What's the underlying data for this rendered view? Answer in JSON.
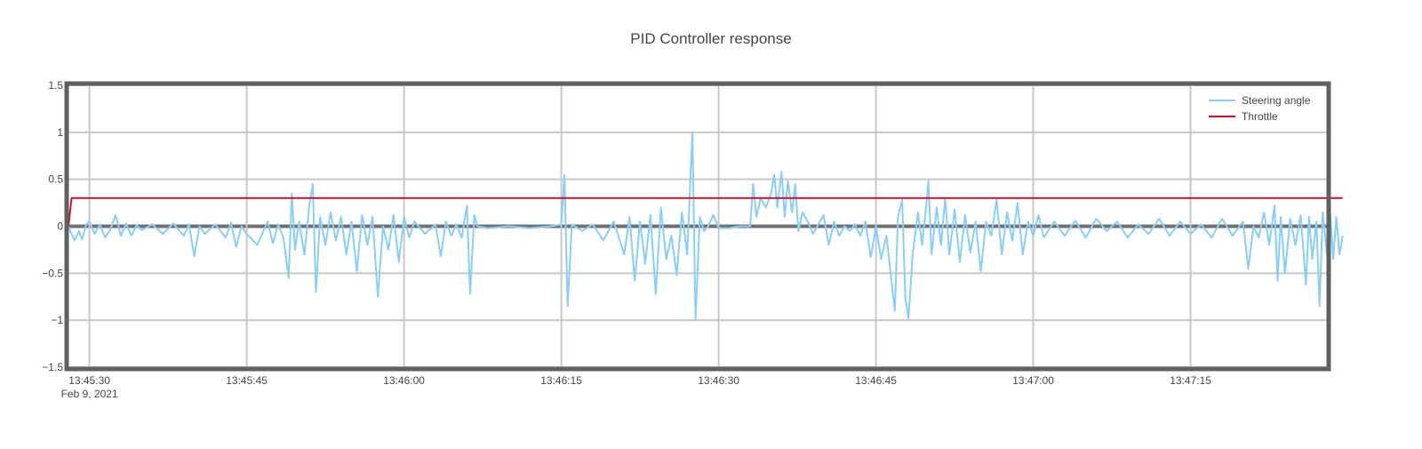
{
  "chart_data": {
    "type": "line",
    "title": "PID Controller response",
    "xlabel": "",
    "ylabel": "",
    "x_range": [
      "2021-02-09 13:45:28",
      "2021-02-09 13:47:28"
    ],
    "ylim": [
      -1.5,
      1.5
    ],
    "y_ticks": [
      -1.5,
      -1,
      -0.5,
      0,
      0.5,
      1,
      1.5
    ],
    "y_tick_labels": [
      "−1.5",
      "−1",
      "−0.5",
      "0",
      "0.5",
      "1",
      "1.5"
    ],
    "x_ticks": [
      "2021-02-09 13:45:30",
      "2021-02-09 13:45:45",
      "2021-02-09 13:46:00",
      "2021-02-09 13:46:15",
      "2021-02-09 13:46:30",
      "2021-02-09 13:46:45",
      "2021-02-09 13:47:00",
      "2021-02-09 13:47:15"
    ],
    "x_tick_labels": [
      "13:45:30",
      "13:45:45",
      "13:46:00",
      "13:46:15",
      "13:46:30",
      "13:46:45",
      "13:47:00",
      "13:47:15"
    ],
    "x_date_label": "Feb 9, 2021",
    "grid": true,
    "legend_position": "top-right",
    "series": [
      {
        "name": "Steering angle",
        "color": "#87CEFA",
        "points": [
          [
            "13:45:28.0",
            0.0
          ],
          [
            "13:45:28.3",
            -0.08
          ],
          [
            "13:45:28.6",
            -0.15
          ],
          [
            "13:45:29.0",
            -0.05
          ],
          [
            "13:45:29.3",
            -0.14
          ],
          [
            "13:45:29.7",
            0.02
          ],
          [
            "13:45:30.0",
            0.05
          ],
          [
            "13:45:30.5",
            -0.08
          ],
          [
            "13:45:31.0",
            0.02
          ],
          [
            "13:45:31.5",
            -0.12
          ],
          [
            "13:45:32.0",
            -0.03
          ],
          [
            "13:45:32.5",
            0.12
          ],
          [
            "13:45:33.0",
            -0.1
          ],
          [
            "13:45:33.5",
            0.03
          ],
          [
            "13:45:34.0",
            -0.1
          ],
          [
            "13:45:34.5",
            0.01
          ],
          [
            "13:45:35.0",
            -0.04
          ],
          [
            "13:45:36.0",
            0.02
          ],
          [
            "13:45:37.0",
            -0.08
          ],
          [
            "13:45:38.0",
            0.03
          ],
          [
            "13:45:39.0",
            -0.1
          ],
          [
            "13:45:39.5",
            0.02
          ],
          [
            "13:45:40.0",
            -0.32
          ],
          [
            "13:45:40.5",
            0.0
          ],
          [
            "13:45:41.0",
            -0.08
          ],
          [
            "13:45:42.0",
            0.02
          ],
          [
            "13:45:43.0",
            -0.12
          ],
          [
            "13:45:43.5",
            0.04
          ],
          [
            "13:45:44.0",
            -0.22
          ],
          [
            "13:45:44.5",
            0.0
          ],
          [
            "13:45:45.0",
            -0.08
          ],
          [
            "13:45:46.0",
            -0.2
          ],
          [
            "13:45:47.0",
            0.05
          ],
          [
            "13:45:47.5",
            -0.18
          ],
          [
            "13:45:48.0",
            0.02
          ],
          [
            "13:45:48.5",
            -0.12
          ],
          [
            "13:45:49.0",
            -0.55
          ],
          [
            "13:45:49.3",
            0.35
          ],
          [
            "13:45:49.6",
            -0.25
          ],
          [
            "13:45:50.0",
            0.05
          ],
          [
            "13:45:50.5",
            -0.3
          ],
          [
            "13:45:51.0",
            0.25
          ],
          [
            "13:45:51.3",
            0.45
          ],
          [
            "13:45:51.6",
            -0.7
          ],
          [
            "13:45:52.0",
            0.1
          ],
          [
            "13:45:52.5",
            -0.2
          ],
          [
            "13:45:53.0",
            0.15
          ],
          [
            "13:45:53.5",
            -0.15
          ],
          [
            "13:45:54.0",
            0.1
          ],
          [
            "13:45:54.5",
            -0.3
          ],
          [
            "13:45:55.0",
            0.05
          ],
          [
            "13:45:55.5",
            -0.48
          ],
          [
            "13:45:56.0",
            0.12
          ],
          [
            "13:45:56.5",
            -0.2
          ],
          [
            "13:45:57.0",
            0.1
          ],
          [
            "13:45:57.5",
            -0.75
          ],
          [
            "13:45:58.0",
            0.0
          ],
          [
            "13:45:58.5",
            -0.25
          ],
          [
            "13:45:59.0",
            0.12
          ],
          [
            "13:45:59.5",
            -0.38
          ],
          [
            "13:46:00.0",
            0.1
          ],
          [
            "13:46:00.5",
            -0.12
          ],
          [
            "13:46:01.0",
            0.05
          ],
          [
            "13:46:02.0",
            -0.08
          ],
          [
            "13:46:03.0",
            0.02
          ],
          [
            "13:46:03.5",
            -0.32
          ],
          [
            "13:46:04.0",
            0.05
          ],
          [
            "13:46:04.5",
            -0.1
          ],
          [
            "13:46:05.0",
            0.02
          ],
          [
            "13:46:05.5",
            -0.12
          ],
          [
            "13:46:06.0",
            0.22
          ],
          [
            "13:46:06.3",
            -0.72
          ],
          [
            "13:46:06.7",
            0.12
          ],
          [
            "13:46:07.0",
            0.0
          ],
          [
            "13:46:08.0",
            -0.02
          ],
          [
            "13:46:10.0",
            0.0
          ],
          [
            "13:46:12.0",
            -0.02
          ],
          [
            "13:46:14.0",
            0.0
          ],
          [
            "13:46:15.0",
            0.02
          ],
          [
            "13:46:15.3",
            0.55
          ],
          [
            "13:46:15.6",
            -0.85
          ],
          [
            "13:46:16.0",
            0.02
          ],
          [
            "13:46:17.0",
            -0.05
          ],
          [
            "13:46:18.0",
            0.02
          ],
          [
            "13:46:19.0",
            -0.15
          ],
          [
            "13:46:20.0",
            0.05
          ],
          [
            "13:46:21.0",
            -0.3
          ],
          [
            "13:46:21.5",
            0.1
          ],
          [
            "13:46:22.0",
            -0.58
          ],
          [
            "13:46:22.5",
            0.05
          ],
          [
            "13:46:23.0",
            -0.4
          ],
          [
            "13:46:23.5",
            0.12
          ],
          [
            "13:46:24.0",
            -0.72
          ],
          [
            "13:46:24.5",
            0.2
          ],
          [
            "13:46:25.0",
            -0.35
          ],
          [
            "13:46:25.5",
            -0.1
          ],
          [
            "13:46:26.0",
            -0.52
          ],
          [
            "13:46:26.5",
            0.15
          ],
          [
            "13:46:27.0",
            -0.3
          ],
          [
            "13:46:27.5",
            1.0
          ],
          [
            "13:46:27.8",
            -1.0
          ],
          [
            "13:46:28.2",
            0.1
          ],
          [
            "13:46:28.6",
            -0.05
          ],
          [
            "13:46:29.0",
            0.0
          ],
          [
            "13:46:29.5",
            0.12
          ],
          [
            "13:46:30.0",
            -0.02
          ],
          [
            "13:46:31.0",
            -0.02
          ],
          [
            "13:46:32.0",
            0.0
          ],
          [
            "13:46:33.0",
            0.0
          ],
          [
            "13:46:33.3",
            0.45
          ],
          [
            "13:46:33.6",
            0.1
          ],
          [
            "13:46:34.0",
            0.3
          ],
          [
            "13:46:34.5",
            0.2
          ],
          [
            "13:46:35.0",
            0.35
          ],
          [
            "13:46:35.3",
            0.55
          ],
          [
            "13:46:35.6",
            0.2
          ],
          [
            "13:46:36.0",
            0.58
          ],
          [
            "13:46:36.3",
            0.1
          ],
          [
            "13:46:36.6",
            0.48
          ],
          [
            "13:46:37.0",
            0.15
          ],
          [
            "13:46:37.3",
            0.45
          ],
          [
            "13:46:37.6",
            -0.05
          ],
          [
            "13:46:38.0",
            0.15
          ],
          [
            "13:46:38.5",
            0.05
          ],
          [
            "13:46:39.0",
            -0.08
          ],
          [
            "13:46:40.0",
            0.12
          ],
          [
            "13:46:40.5",
            -0.2
          ],
          [
            "13:46:41.0",
            0.05
          ],
          [
            "13:46:41.5",
            -0.1
          ],
          [
            "13:46:42.0",
            0.0
          ],
          [
            "13:46:42.5",
            -0.05
          ],
          [
            "13:46:43.0",
            0.02
          ],
          [
            "13:46:43.5",
            -0.1
          ],
          [
            "13:46:44.0",
            0.05
          ],
          [
            "13:46:44.5",
            -0.33
          ],
          [
            "13:46:45.0",
            0.0
          ],
          [
            "13:46:45.5",
            -0.35
          ],
          [
            "13:46:46.0",
            -0.1
          ],
          [
            "13:46:46.5",
            -0.6
          ],
          [
            "13:46:46.8",
            -0.9
          ],
          [
            "13:46:47.1",
            0.1
          ],
          [
            "13:46:47.5",
            0.28
          ],
          [
            "13:46:47.8",
            -0.75
          ],
          [
            "13:46:48.1",
            -0.98
          ],
          [
            "13:46:48.5",
            -0.3
          ],
          [
            "13:46:49.0",
            0.15
          ],
          [
            "13:46:49.4",
            -0.2
          ],
          [
            "13:46:49.8",
            0.22
          ],
          [
            "13:46:50.0",
            0.48
          ],
          [
            "13:46:50.3",
            -0.3
          ],
          [
            "13:46:50.8",
            0.2
          ],
          [
            "13:46:51.2",
            -0.2
          ],
          [
            "13:46:51.6",
            0.3
          ],
          [
            "13:46:52.0",
            -0.3
          ],
          [
            "13:46:52.5",
            0.18
          ],
          [
            "13:46:53.0",
            -0.38
          ],
          [
            "13:46:53.5",
            0.12
          ],
          [
            "13:46:54.0",
            -0.28
          ],
          [
            "13:46:54.5",
            0.05
          ],
          [
            "13:46:55.0",
            -0.48
          ],
          [
            "13:46:55.5",
            0.05
          ],
          [
            "13:46:56.0",
            -0.1
          ],
          [
            "13:46:56.5",
            0.28
          ],
          [
            "13:46:57.0",
            -0.3
          ],
          [
            "13:46:57.5",
            0.15
          ],
          [
            "13:46:58.0",
            -0.15
          ],
          [
            "13:46:58.5",
            0.25
          ],
          [
            "13:46:59.0",
            -0.3
          ],
          [
            "13:46:59.5",
            0.05
          ],
          [
            "13:47:00.0",
            -0.1
          ],
          [
            "13:47:00.5",
            0.12
          ],
          [
            "13:47:01.0",
            -0.12
          ],
          [
            "13:47:02.0",
            0.05
          ],
          [
            "13:47:03.0",
            -0.1
          ],
          [
            "13:47:04.0",
            0.06
          ],
          [
            "13:47:05.0",
            -0.12
          ],
          [
            "13:47:06.0",
            0.08
          ],
          [
            "13:47:07.0",
            -0.05
          ],
          [
            "13:47:08.0",
            0.05
          ],
          [
            "13:47:09.0",
            -0.12
          ],
          [
            "13:47:10.0",
            0.02
          ],
          [
            "13:47:11.0",
            -0.08
          ],
          [
            "13:47:12.0",
            0.08
          ],
          [
            "13:47:13.0",
            -0.1
          ],
          [
            "13:47:14.0",
            0.05
          ],
          [
            "13:47:15.0",
            -0.08
          ],
          [
            "13:47:16.0",
            0.02
          ],
          [
            "13:47:17.0",
            -0.12
          ],
          [
            "13:47:18.0",
            0.08
          ],
          [
            "13:47:19.0",
            -0.1
          ],
          [
            "13:47:20.0",
            0.05
          ],
          [
            "13:47:20.5",
            -0.45
          ],
          [
            "13:47:21.0",
            0.0
          ],
          [
            "13:47:21.5",
            -0.12
          ],
          [
            "13:47:22.0",
            0.15
          ],
          [
            "13:47:22.5",
            -0.2
          ],
          [
            "13:47:23.0",
            0.22
          ],
          [
            "13:47:23.3",
            -0.58
          ],
          [
            "13:47:23.6",
            0.1
          ],
          [
            "13:47:24.0",
            -0.5
          ],
          [
            "13:47:24.5",
            0.08
          ],
          [
            "13:47:25.0",
            -0.2
          ],
          [
            "13:47:25.5",
            0.12
          ],
          [
            "13:47:26.0",
            -0.62
          ],
          [
            "13:47:26.3",
            0.1
          ],
          [
            "13:47:26.6",
            -0.35
          ],
          [
            "13:47:27.0",
            0.05
          ],
          [
            "13:47:27.3",
            -0.85
          ],
          [
            "13:47:27.6",
            0.15
          ],
          [
            "13:47:28.0",
            -0.3
          ],
          [
            "13:47:28.3",
            0.18
          ],
          [
            "13:47:28.6",
            -0.35
          ],
          [
            "13:47:28.9",
            0.1
          ],
          [
            "13:47:29.2",
            -0.3
          ],
          [
            "13:47:29.5",
            -0.1
          ]
        ]
      },
      {
        "name": "Throttle",
        "color": "#C8102E",
        "points": [
          [
            "13:45:28.0",
            0.0
          ],
          [
            "13:45:28.3",
            0.3
          ],
          [
            "13:47:29.5",
            0.3
          ]
        ]
      }
    ]
  }
}
